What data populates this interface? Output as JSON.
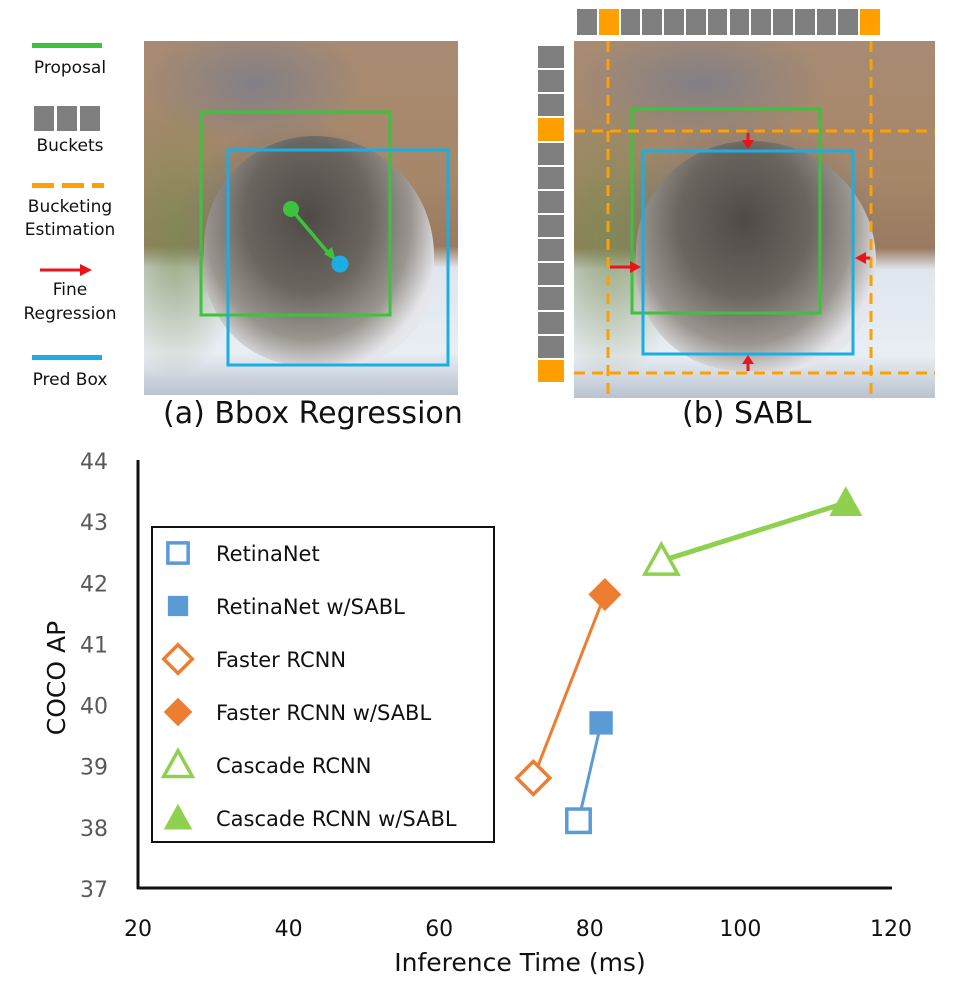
{
  "legend_top": {
    "items": [
      {
        "label": "Proposal",
        "icon": "green-line",
        "color": "#3cc23c"
      },
      {
        "label": "Buckets",
        "icon": "gray-buckets",
        "color": "#7f7f7f"
      },
      {
        "label": "Bucketing Estimation",
        "line1": "Bucketing",
        "line2": "Estimation",
        "icon": "orange-dashed-line",
        "color": "#ff9f00"
      },
      {
        "label": "Fine Regression",
        "line1": "Fine",
        "line2": "Regression",
        "icon": "red-arrow",
        "color": "#e8141e"
      },
      {
        "label": "Pred Box",
        "icon": "blue-line",
        "color": "#1aaee5"
      }
    ]
  },
  "panels": {
    "a": {
      "caption": "(a) Bbox Regression"
    },
    "b": {
      "caption": "(b) SABL",
      "top_buckets": {
        "count": 14,
        "highlighted": [
          1,
          13
        ]
      },
      "side_buckets": {
        "count": 14,
        "highlighted": [
          3,
          13
        ]
      }
    }
  },
  "colors": {
    "proposal": "#3cc23c",
    "pred_box": "#1aaee5",
    "bucket": "#7f7f7f",
    "bucket_active": "#ff9f00",
    "arrow": "#e8141e",
    "retinanet": "#5b9bd5",
    "faster": "#ed7d31",
    "cascade": "#8fd14f"
  },
  "chart_data": {
    "type": "scatter",
    "title": "",
    "xlabel": "Inference Time (ms)",
    "ylabel": "COCO AP",
    "xlim": [
      20,
      120
    ],
    "ylim": [
      37,
      44
    ],
    "xticks": [
      "20",
      "40",
      "60",
      "80",
      "100",
      "120"
    ],
    "yticks": [
      "37",
      "38",
      "39",
      "40",
      "41",
      "42",
      "43",
      "44"
    ],
    "grid": false,
    "legend_position": "left",
    "series": [
      {
        "name": "RetinaNet",
        "marker": "square-open",
        "color": "#5b9bd5",
        "x": 78.5,
        "y": 38.1
      },
      {
        "name": "RetinaNet w/SABL",
        "marker": "square-filled",
        "color": "#5b9bd5",
        "x": 81.5,
        "y": 39.7
      },
      {
        "name": "Faster RCNN",
        "marker": "diamond-open",
        "color": "#ed7d31",
        "x": 72.5,
        "y": 38.8
      },
      {
        "name": "Faster RCNN w/SABL",
        "marker": "diamond-filled",
        "color": "#ed7d31",
        "x": 82,
        "y": 41.8
      },
      {
        "name": "Cascade RCNN",
        "marker": "triangle-open",
        "color": "#8fd14f",
        "x": 89.5,
        "y": 42.35
      },
      {
        "name": "Cascade RCNN w/SABL",
        "marker": "triangle-filled",
        "color": "#8fd14f",
        "x": 114,
        "y": 43.3
      }
    ],
    "connections": [
      {
        "from": "RetinaNet",
        "to": "RetinaNet w/SABL",
        "color": "#5b9bd5"
      },
      {
        "from": "Faster RCNN",
        "to": "Faster RCNN w/SABL",
        "color": "#ed7d31"
      },
      {
        "from": "Cascade RCNN w/SABL",
        "to": "Cascade RCNN",
        "color": "#8fd14f",
        "arrow": true
      }
    ]
  }
}
